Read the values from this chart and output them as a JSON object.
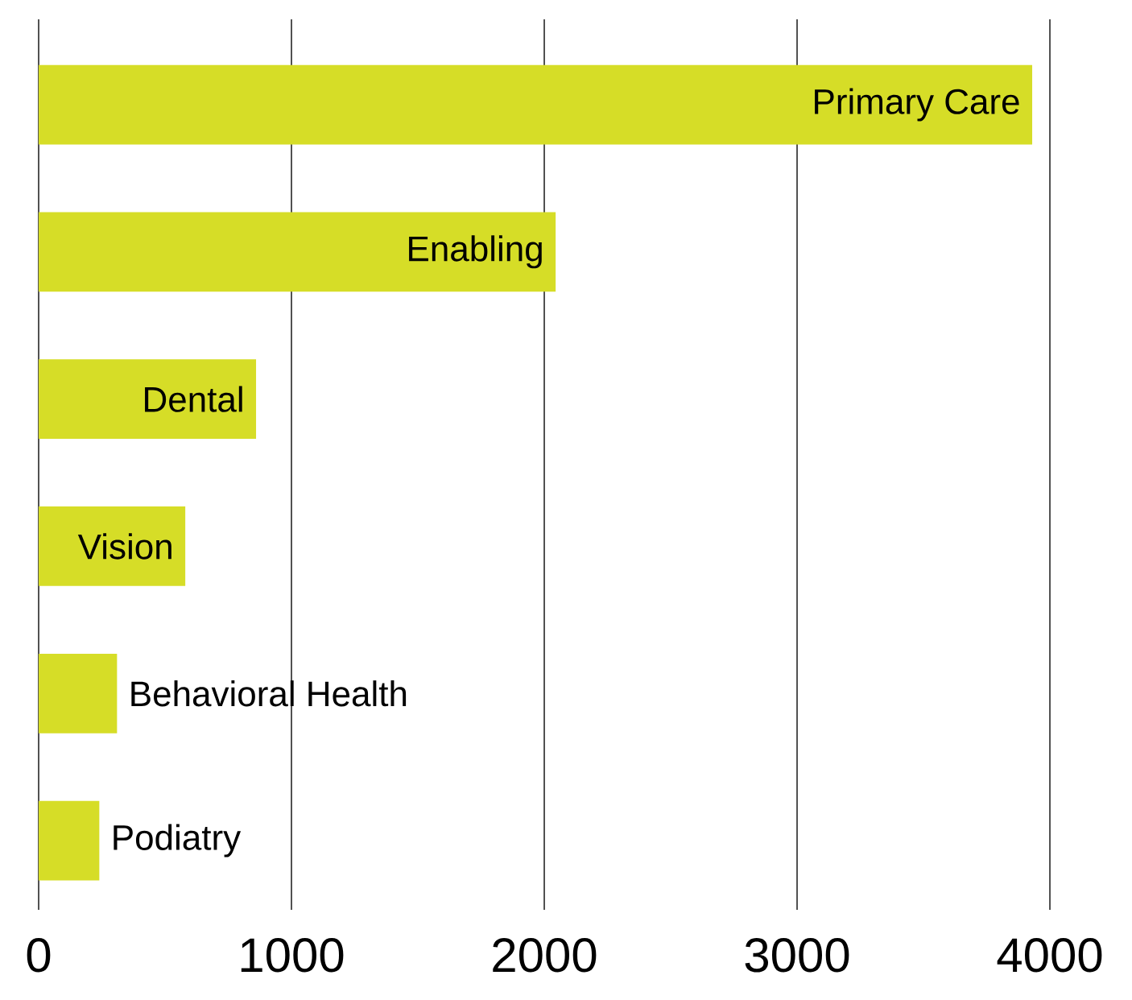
{
  "chart_data": {
    "type": "bar",
    "orientation": "horizontal",
    "categories": [
      "Primary Care",
      "Enabling",
      "Dental",
      "Vision",
      "Behavioral Health",
      "Podiatry"
    ],
    "values": [
      3930,
      2045,
      860,
      580,
      310,
      240
    ],
    "color": "#d6dd27",
    "xlim": [
      0,
      4000
    ],
    "xticks": [
      0,
      1000,
      2000,
      3000,
      4000
    ],
    "grid": "x"
  }
}
